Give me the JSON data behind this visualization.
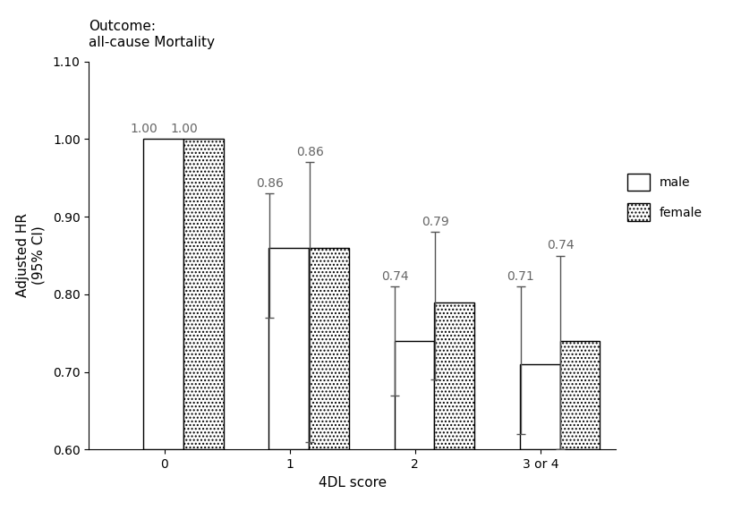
{
  "title": "Outcome:\nall-cause Mortality",
  "xlabel": "4DL score",
  "ylabel": "Adjusted HR\n(95% CI)",
  "categories": [
    "0",
    "1",
    "2",
    "3 or 4"
  ],
  "male_values": [
    1.0,
    0.86,
    0.74,
    0.71
  ],
  "female_values": [
    1.0,
    0.86,
    0.79,
    0.74
  ],
  "male_ci_lower": [
    null,
    0.77,
    0.67,
    0.62
  ],
  "male_ci_upper": [
    null,
    0.93,
    0.81,
    0.81
  ],
  "female_ci_lower": [
    null,
    0.61,
    0.69,
    0.6
  ],
  "female_ci_upper": [
    null,
    0.97,
    0.88,
    0.85
  ],
  "ylim": [
    0.6,
    1.1
  ],
  "yticks": [
    0.6,
    0.7,
    0.8,
    0.9,
    1.0,
    1.1
  ],
  "bar_width": 0.32,
  "male_color": "#ffffff",
  "male_edge_color": "#000000",
  "female_edge_color": "#000000",
  "error_color": "#555555",
  "label_color": "#666666",
  "title_fontsize": 11,
  "axis_label_fontsize": 11,
  "tick_fontsize": 10,
  "value_fontsize": 10,
  "legend_fontsize": 10,
  "background_color": "#ffffff"
}
